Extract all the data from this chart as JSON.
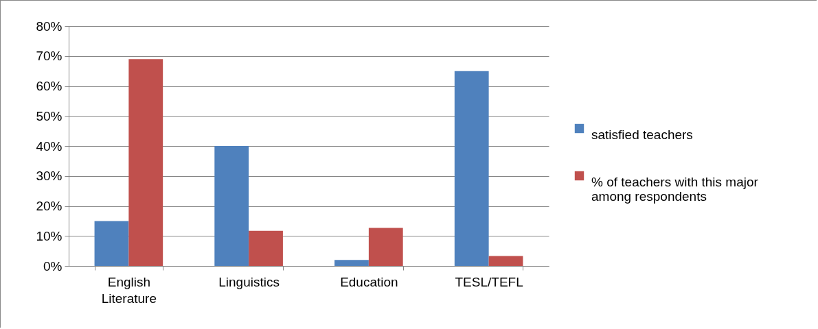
{
  "chart_data": {
    "type": "bar",
    "categories": [
      "English Literature",
      "Linguistics",
      "Education",
      "TESL/TEFL"
    ],
    "series": [
      {
        "name": "satisfied teachers",
        "color": "#4f81bd",
        "values": [
          15,
          40,
          2,
          65
        ]
      },
      {
        "name": "% of teachers with this major among respondents",
        "color": "#c0504d",
        "values": [
          69,
          11.7,
          12.7,
          3.3
        ]
      }
    ],
    "ylim": [
      0,
      80
    ],
    "yticks": [
      {
        "value": 0,
        "label": "0%"
      },
      {
        "value": 10,
        "label": "10%"
      },
      {
        "value": 20,
        "label": "20%"
      },
      {
        "value": 30,
        "label": "30%"
      },
      {
        "value": 40,
        "label": "40%"
      },
      {
        "value": 50,
        "label": "50%"
      },
      {
        "value": 60,
        "label": "60%"
      },
      {
        "value": 70,
        "label": "70%"
      },
      {
        "value": 80,
        "label": "80%"
      }
    ],
    "grid": "y",
    "legend": "right"
  }
}
